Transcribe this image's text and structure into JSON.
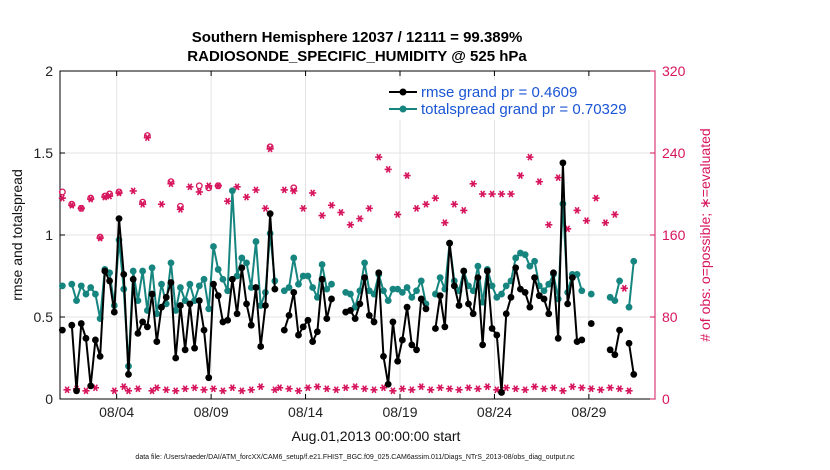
{
  "chart_data": {
    "type": "line",
    "title_line1": "Southern Hemisphere 12037 / 12111 = 99.389%",
    "title_line2": "RADIOSONDE_SPECIFIC_HUMIDITY @ 525 hPa",
    "xlabel": "Aug.01,2013 00:00:00 start",
    "ylabel": "rmse and totalspread",
    "ylabel_right": "# of obs: o=possible; ∗=evaluated",
    "x_range": [
      0,
      31.5
    ],
    "ylim": [
      0,
      2
    ],
    "ylim_right": [
      0,
      320
    ],
    "x_ticks": [
      {
        "x": 3,
        "label": "08/04"
      },
      {
        "x": 8,
        "label": "08/09"
      },
      {
        "x": 13,
        "label": "08/14"
      },
      {
        "x": 18,
        "label": "08/19"
      },
      {
        "x": 23,
        "label": "08/24"
      },
      {
        "x": 28,
        "label": "08/29"
      }
    ],
    "y_ticks": [
      {
        "v": 0,
        "label": "0"
      },
      {
        "v": 0.5,
        "label": "0.5"
      },
      {
        "v": 1,
        "label": "1"
      },
      {
        "v": 1.5,
        "label": "1.5"
      },
      {
        "v": 2,
        "label": "2"
      }
    ],
    "y_ticks_right": [
      {
        "v": 0,
        "label": "0"
      },
      {
        "v": 80,
        "label": "80"
      },
      {
        "v": 160,
        "label": "160"
      },
      {
        "v": 240,
        "label": "240"
      },
      {
        "v": 320,
        "label": "320"
      }
    ],
    "grid": true,
    "legend_position": "top-right",
    "time_step": 0.25,
    "series": [
      {
        "name": "rmse grand pr = 0.4609",
        "color": "#000000",
        "values": [
          0.42,
          null,
          0.45,
          0.05,
          0.46,
          0.37,
          0.08,
          0.36,
          0.26,
          0.78,
          0.72,
          0.53,
          1.1,
          0.76,
          0.15,
          0.73,
          0.4,
          0.47,
          0.44,
          0.64,
          0.35,
          0.56,
          0.62,
          0.71,
          0.25,
          0.57,
          0.3,
          0.58,
          0.31,
          0.6,
          0.42,
          0.13,
          0.7,
          0.63,
          0.47,
          0.48,
          0.73,
          0.52,
          0.8,
          0.58,
          0.45,
          0.68,
          0.32,
          0.57,
          1.13,
          0.67,
          null,
          0.42,
          0.51,
          0.65,
          0.39,
          0.44,
          0.48,
          0.35,
          0.41,
          0.73,
          0.49,
          0.61,
          null,
          null,
          0.53,
          0.54,
          0.49,
          0.58,
          0.74,
          0.51,
          0.47,
          0.77,
          0.26,
          0.09,
          0.47,
          0.23,
          0.36,
          0.56,
          0.33,
          0.3,
          0.61,
          0.55,
          null,
          0.43,
          0.63,
          0.44,
          0.95,
          0.69,
          0.57,
          0.78,
          0.58,
          0.52,
          0.74,
          0.33,
          0.78,
          0.43,
          0.39,
          0.04,
          0.52,
          0.62,
          0.8,
          0.67,
          0.65,
          0.56,
          0.74,
          0.63,
          0.61,
          0.52,
          0.77,
          0.37,
          1.44,
          0.58,
          0.74,
          0.35,
          0.36,
          null,
          0.46,
          null,
          null,
          null,
          0.3,
          0.27,
          0.42,
          null,
          0.34,
          0.15
        ]
      },
      {
        "name": "totalspread grand pr = 0.70329",
        "color": "#17857f",
        "values": [
          0.69,
          null,
          0.7,
          0.6,
          0.69,
          0.64,
          0.68,
          0.64,
          0.49,
          0.79,
          0.77,
          0.57,
          0.97,
          0.67,
          0.2,
          0.78,
          0.6,
          0.78,
          0.54,
          0.8,
          0.52,
          0.7,
          0.58,
          0.83,
          0.54,
          0.68,
          0.6,
          0.7,
          0.6,
          0.69,
          0.73,
          0.55,
          0.93,
          0.79,
          0.73,
          0.66,
          1.27,
          0.75,
          0.86,
          0.83,
          0.68,
          0.96,
          0.57,
          0.65,
          1.01,
          0.72,
          null,
          0.66,
          0.68,
          0.86,
          0.7,
          0.75,
          0.75,
          0.68,
          0.62,
          0.82,
          0.67,
          0.7,
          null,
          null,
          0.65,
          0.64,
          0.56,
          0.66,
          0.83,
          0.66,
          0.64,
          0.76,
          0.66,
          0.6,
          0.67,
          0.67,
          0.65,
          0.68,
          0.62,
          0.66,
          0.72,
          0.58,
          null,
          0.64,
          0.74,
          0.67,
          0.95,
          0.72,
          0.66,
          0.78,
          0.69,
          0.66,
          0.81,
          0.59,
          0.79,
          0.69,
          0.62,
          0.64,
          0.69,
          0.72,
          0.86,
          0.89,
          0.88,
          0.81,
          0.84,
          0.69,
          0.66,
          0.7,
          0.76,
          0.61,
          1.19,
          0.65,
          0.76,
          0.76,
          0.66,
          null,
          0.64,
          null,
          null,
          null,
          0.62,
          0.6,
          0.72,
          null,
          0.56,
          0.84
        ]
      }
    ],
    "obs_possible": [
      202,
      null,
      190,
      null,
      186,
      null,
      196,
      null,
      158,
      198,
      200,
      null,
      202,
      null,
      null,
      null,
      null,
      192,
      257,
      null,
      null,
      null,
      null,
      212,
      null,
      188,
      null,
      null,
      null,
      208,
      null,
      206,
      null,
      208,
      null,
      null,
      null,
      null,
      null,
      null,
      null,
      null,
      null,
      null,
      246,
      null,
      null,
      null,
      null,
      206,
      null,
      null,
      null,
      null,
      null,
      null,
      null,
      null,
      null,
      null,
      null,
      null,
      null,
      null,
      null,
      null,
      null,
      null,
      null,
      null,
      null,
      null,
      null,
      null,
      null,
      null,
      null,
      null,
      null,
      null,
      null,
      null,
      null,
      null,
      null,
      null,
      null,
      null,
      null,
      null,
      null,
      null,
      null,
      null,
      null,
      null,
      null,
      null,
      null,
      null,
      null,
      null,
      null,
      null,
      null,
      null,
      null,
      null,
      null,
      null,
      null,
      null,
      null,
      null,
      null,
      null,
      null,
      null,
      null,
      null,
      null,
      null
    ],
    "obs_evaluated": [
      196,
      9,
      189,
      10,
      186,
      8,
      195,
      11,
      157,
      197,
      198,
      8,
      201,
      12,
      8,
      203,
      10,
      190,
      255,
      8,
      11,
      190,
      9,
      210,
      8,
      185,
      10,
      207,
      11,
      202,
      9,
      208,
      10,
      208,
      8,
      193,
      11,
      207,
      8,
      197,
      9,
      204,
      12,
      186,
      244,
      9,
      11,
      204,
      10,
      203,
      8,
      186,
      11,
      201,
      12,
      179,
      10,
      189,
      9,
      182,
      11,
      170,
      12,
      176,
      10,
      186,
      9,
      236,
      11,
      224,
      8,
      180,
      10,
      218,
      9,
      186,
      12,
      190,
      9,
      196,
      11,
      172,
      10,
      190,
      9,
      184,
      11,
      210,
      10,
      200,
      12,
      200,
      9,
      200,
      11,
      200,
      10,
      218,
      9,
      236,
      12,
      212,
      10,
      170,
      11,
      216,
      8,
      166,
      12,
      184,
      11,
      174,
      10,
      196,
      9,
      172,
      11,
      180,
      10,
      108,
      8
    ]
  },
  "footer": "data file: /Users/raeder/DAI/ATM_forcXX/CAM6_setup/f.e21.FHIST_BGC.f09_025.CAM6assim.011/Diags_NTrS_2013-08/obs_diag_output.nc"
}
